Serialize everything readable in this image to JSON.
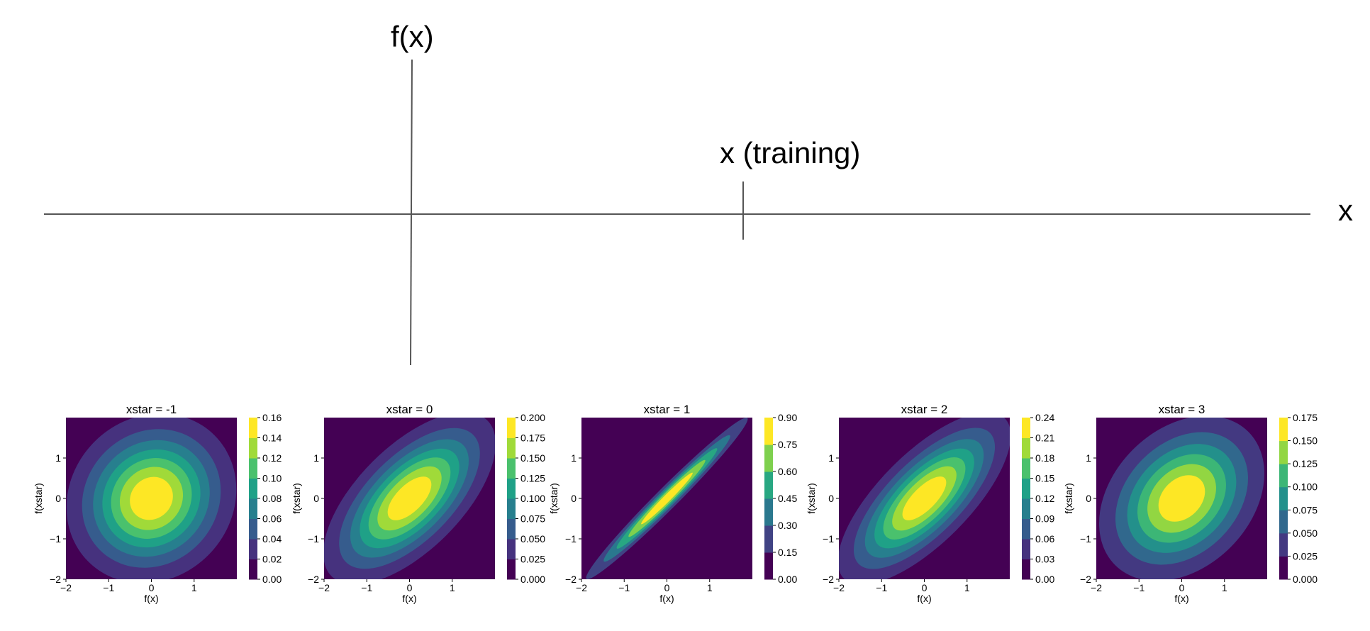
{
  "diagram": {
    "fx_label": "f(x)",
    "x_training_label": "x (training)",
    "x_axis_label": "x",
    "line_color": "#555555"
  },
  "chart_data": [
    {
      "type": "contour",
      "title": "xstar = -1",
      "xlabel": "f(x)",
      "ylabel": "f(xstar)",
      "xlim": [
        -2,
        2
      ],
      "ylim": [
        -2,
        2
      ],
      "xticks": [
        "−2",
        "−1",
        "0",
        "1"
      ],
      "yticks": [
        "−2",
        "−1",
        "0",
        "1"
      ],
      "correlation": 0.05,
      "peak": 0.16,
      "colorbar_ticks": [
        "0.00",
        "0.02",
        "0.04",
        "0.06",
        "0.08",
        "0.10",
        "0.12",
        "0.14",
        "0.16"
      ]
    },
    {
      "type": "contour",
      "title": "xstar = 0",
      "xlabel": "f(x)",
      "ylabel": "f(xstar)",
      "xlim": [
        -2,
        2
      ],
      "ylim": [
        -2,
        2
      ],
      "xticks": [
        "−2",
        "−1",
        "0",
        "1"
      ],
      "yticks": [
        "−2",
        "−1",
        "0",
        "1"
      ],
      "correlation": 0.6,
      "peak": 0.2,
      "colorbar_ticks": [
        "0.000",
        "0.025",
        "0.050",
        "0.075",
        "0.100",
        "0.125",
        "0.150",
        "0.175",
        "0.200"
      ]
    },
    {
      "type": "contour",
      "title": "xstar = 1",
      "xlabel": "f(x)",
      "ylabel": "f(xstar)",
      "xlim": [
        -2,
        2
      ],
      "ylim": [
        -2,
        2
      ],
      "xticks": [
        "−2",
        "−1",
        "0",
        "1"
      ],
      "yticks": [
        "−2",
        "−1",
        "0",
        "1"
      ],
      "correlation": 0.98,
      "peak": 0.9,
      "colorbar_ticks": [
        "0.00",
        "0.15",
        "0.30",
        "0.45",
        "0.60",
        "0.75",
        "0.90"
      ]
    },
    {
      "type": "contour",
      "title": "xstar = 2",
      "xlabel": "f(x)",
      "ylabel": "f(xstar)",
      "xlim": [
        -2,
        2
      ],
      "ylim": [
        -2,
        2
      ],
      "xticks": [
        "−2",
        "−1",
        "0",
        "1"
      ],
      "yticks": [
        "−2",
        "−1",
        "0",
        "1"
      ],
      "correlation": 0.7,
      "peak": 0.24,
      "colorbar_ticks": [
        "0.00",
        "0.03",
        "0.06",
        "0.09",
        "0.12",
        "0.15",
        "0.18",
        "0.21",
        "0.24"
      ]
    },
    {
      "type": "contour",
      "title": "xstar = 3",
      "xlabel": "f(x)",
      "ylabel": "f(xstar)",
      "xlim": [
        -2,
        2
      ],
      "ylim": [
        -2,
        2
      ],
      "xticks": [
        "−2",
        "−1",
        "0",
        "1"
      ],
      "yticks": [
        "−2",
        "−1",
        "0",
        "1"
      ],
      "correlation": 0.25,
      "peak": 0.175,
      "colorbar_ticks": [
        "0.000",
        "0.025",
        "0.050",
        "0.075",
        "0.100",
        "0.125",
        "0.150",
        "0.175"
      ]
    }
  ],
  "colormap": [
    "#440154",
    "#46327e",
    "#365c8d",
    "#277f8e",
    "#1fa187",
    "#4ac16d",
    "#a0da39",
    "#fde725"
  ]
}
